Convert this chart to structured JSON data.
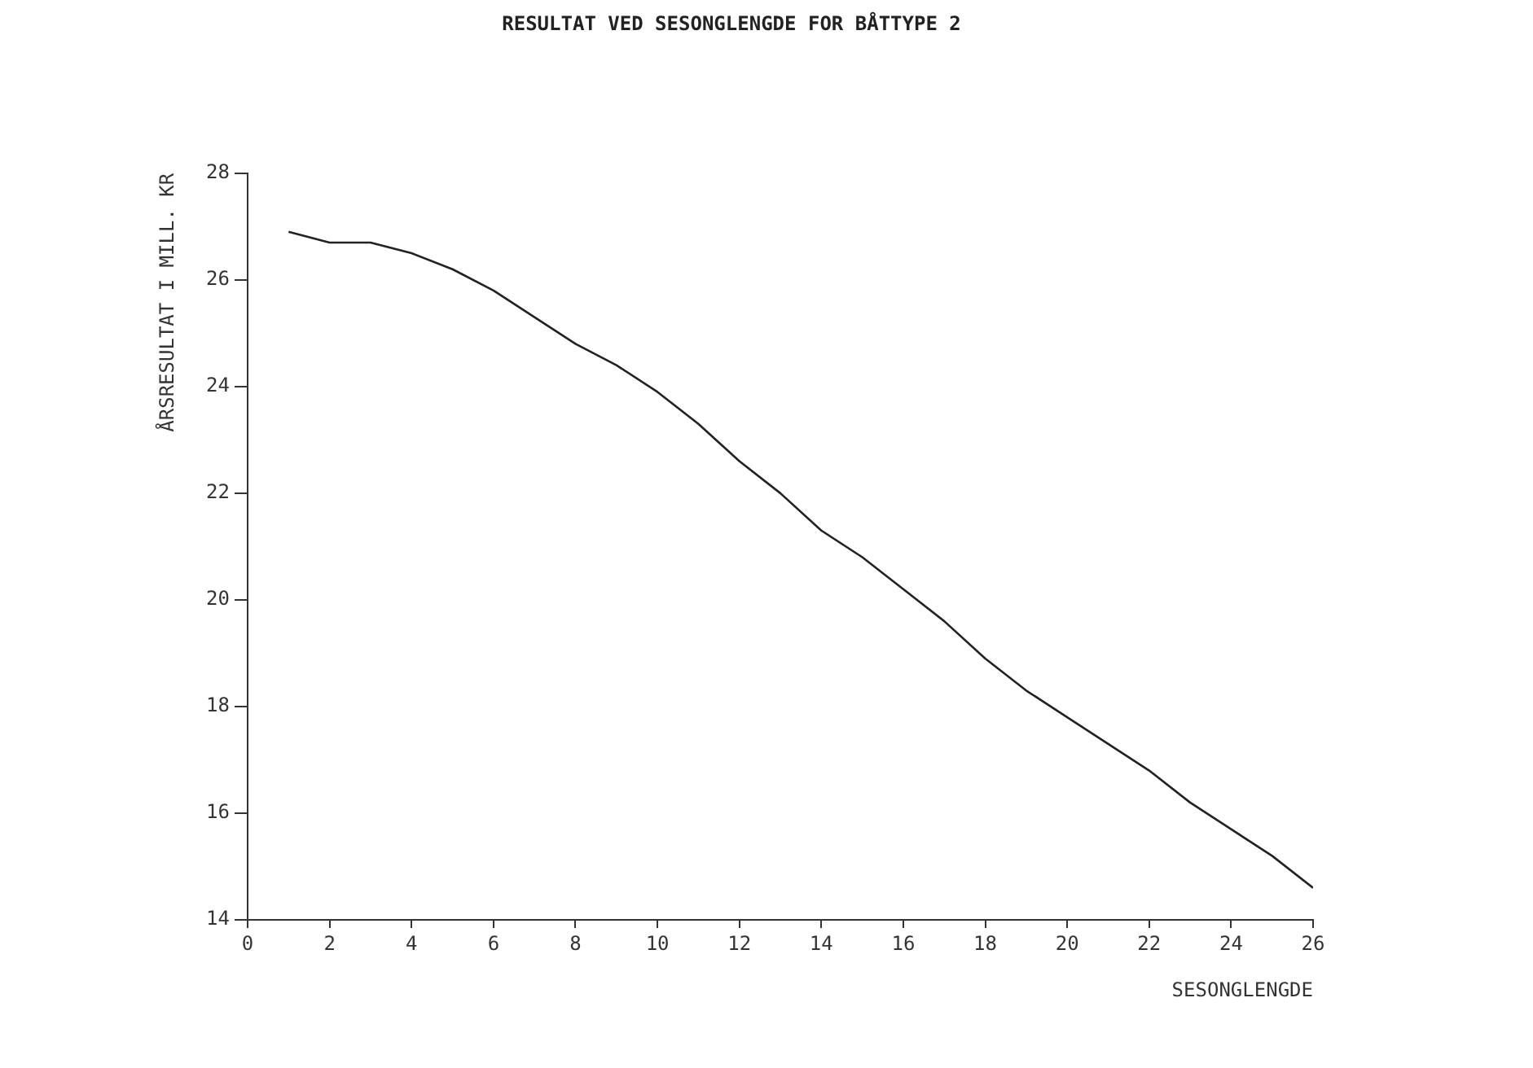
{
  "chart_data": {
    "type": "line",
    "title": "RESULTAT VED SESONGLENGDE FOR BÅTTYPE 2",
    "xlabel": "SESONGLENGDE",
    "ylabel": "ÅRSRESULTAT I MILL. KR",
    "x": [
      1,
      2,
      3,
      4,
      5,
      6,
      7,
      8,
      9,
      10,
      11,
      12,
      13,
      14,
      15,
      16,
      17,
      18,
      19,
      20,
      21,
      22,
      23,
      24,
      25,
      26
    ],
    "series": [
      {
        "color": "#222222",
        "values": [
          26.9,
          26.7,
          26.7,
          26.5,
          26.2,
          25.8,
          25.3,
          24.8,
          24.4,
          23.9,
          23.3,
          22.6,
          22.0,
          21.3,
          20.8,
          20.2,
          19.6,
          18.9,
          18.3,
          17.8,
          17.3,
          16.8,
          16.2,
          15.7,
          15.2,
          14.6
        ]
      }
    ],
    "xlim": [
      0,
      26
    ],
    "xticks": [
      0,
      2,
      4,
      6,
      8,
      10,
      12,
      14,
      16,
      18,
      20,
      22,
      24,
      26
    ],
    "ylim": [
      14,
      28
    ],
    "yticks": [
      14,
      16,
      18,
      20,
      22,
      24,
      26,
      28
    ],
    "grid": false,
    "legend": false,
    "marker": "none",
    "line_style": "solid"
  }
}
